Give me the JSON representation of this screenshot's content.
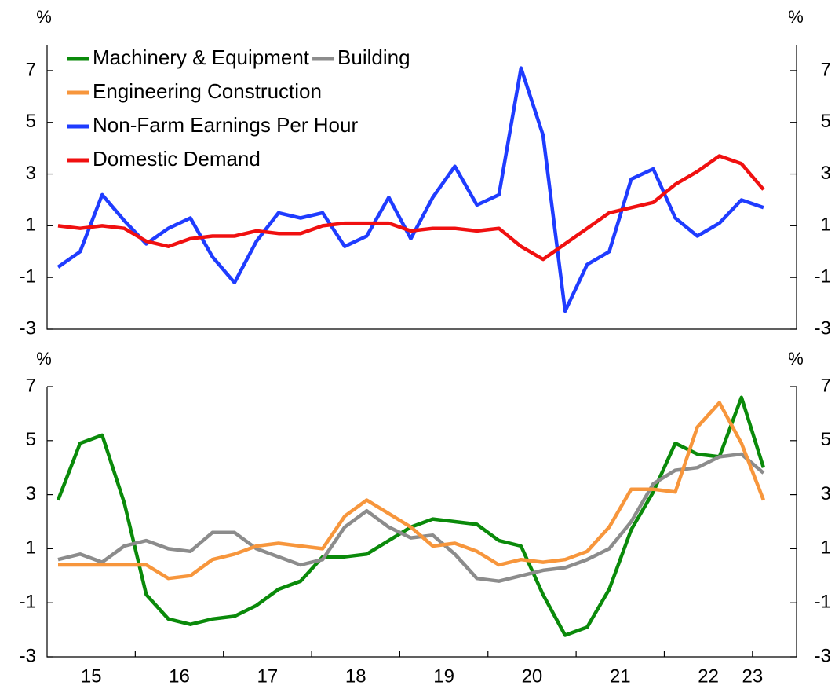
{
  "chart_data": [
    {
      "type": "line",
      "ylabel": "%",
      "y2label": "%",
      "x": [
        15.125,
        15.375,
        15.625,
        15.875,
        16.125,
        16.375,
        16.625,
        16.875,
        17.125,
        17.375,
        17.625,
        17.875,
        18.125,
        18.375,
        18.625,
        18.875,
        19.125,
        19.375,
        19.625,
        19.875,
        20.125,
        20.375,
        20.625,
        20.875,
        21.125,
        21.375,
        21.625,
        21.875,
        22.125,
        22.375,
        22.625,
        22.875,
        23.125
      ],
      "xlim": [
        15,
        23.5
      ],
      "series": [
        {
          "name": "Non-Farm Earnings Per Hour",
          "color": "#1f3cff",
          "values": [
            -0.6,
            0.0,
            2.2,
            1.2,
            0.3,
            0.9,
            1.3,
            -0.2,
            -1.2,
            0.4,
            1.5,
            1.3,
            1.5,
            0.2,
            0.6,
            2.1,
            0.5,
            2.1,
            3.3,
            1.8,
            2.2,
            7.1,
            4.5,
            -2.3,
            -0.5,
            0.0,
            2.8,
            3.2,
            1.3,
            0.6,
            1.1,
            2.0,
            1.7
          ]
        },
        {
          "name": "Domestic Demand",
          "color": "#f01010",
          "values": [
            1.0,
            0.9,
            1.0,
            0.9,
            0.4,
            0.2,
            0.5,
            0.6,
            0.6,
            0.8,
            0.7,
            0.7,
            1.0,
            1.1,
            1.1,
            1.1,
            0.8,
            0.9,
            0.9,
            0.8,
            0.9,
            0.2,
            -0.3,
            0.3,
            0.9,
            1.5,
            1.7,
            1.9,
            2.6,
            3.1,
            3.7,
            3.4,
            2.4
          ]
        }
      ],
      "ylim": [
        -3,
        8
      ],
      "yticks": [
        -3,
        -1,
        1,
        3,
        5,
        7
      ],
      "y2lim": [
        -3,
        8
      ],
      "y2ticks": [
        -3,
        -1,
        1,
        3,
        5,
        7
      ]
    },
    {
      "type": "line",
      "ylabel": "%",
      "y2label": "%",
      "x": [
        15.125,
        15.375,
        15.625,
        15.875,
        16.125,
        16.375,
        16.625,
        16.875,
        17.125,
        17.375,
        17.625,
        17.875,
        18.125,
        18.375,
        18.625,
        18.875,
        19.125,
        19.375,
        19.625,
        19.875,
        20.125,
        20.375,
        20.625,
        20.875,
        21.125,
        21.375,
        21.625,
        21.875,
        22.125,
        22.375,
        22.625,
        22.875,
        23.125
      ],
      "xlim": [
        15,
        23.5
      ],
      "xticks": [
        {
          "value": 15.5,
          "label": "15"
        },
        {
          "value": 16.5,
          "label": "16"
        },
        {
          "value": 17.5,
          "label": "17"
        },
        {
          "value": 18.5,
          "label": "18"
        },
        {
          "value": 19.5,
          "label": "19"
        },
        {
          "value": 20.5,
          "label": "20"
        },
        {
          "value": 21.5,
          "label": "21"
        },
        {
          "value": 22.5,
          "label": "22"
        },
        {
          "value": 23,
          "label": "23"
        }
      ],
      "xminorticks": [
        16,
        17,
        18,
        19,
        20,
        21,
        22,
        23
      ],
      "series": [
        {
          "name": "Machinery & Equipment",
          "color": "#0a8a0a",
          "values": [
            2.8,
            4.9,
            5.2,
            2.7,
            -0.7,
            -1.6,
            -1.8,
            -1.6,
            -1.5,
            -1.1,
            -0.5,
            -0.2,
            0.7,
            0.7,
            0.8,
            1.3,
            1.8,
            2.1,
            2.0,
            1.9,
            1.3,
            1.1,
            -0.7,
            -2.2,
            -1.9,
            -0.5,
            1.7,
            3.1,
            4.9,
            4.5,
            4.4,
            6.6,
            4.0
          ]
        },
        {
          "name": "Building",
          "color": "#8c8c8c",
          "values": [
            0.6,
            0.8,
            0.5,
            1.1,
            1.3,
            1.0,
            0.9,
            1.6,
            1.6,
            1.0,
            0.7,
            0.4,
            0.6,
            1.8,
            2.4,
            1.8,
            1.4,
            1.5,
            0.8,
            -0.1,
            -0.2,
            0.0,
            0.2,
            0.3,
            0.6,
            1.0,
            2.0,
            3.4,
            3.9,
            4.0,
            4.4,
            4.5,
            3.8
          ]
        },
        {
          "name": "Engineering Construction",
          "color": "#f7963c",
          "values": [
            0.4,
            0.4,
            0.4,
            0.4,
            0.4,
            -0.1,
            0.0,
            0.6,
            0.8,
            1.1,
            1.2,
            1.1,
            1.0,
            2.2,
            2.8,
            2.3,
            1.8,
            1.1,
            1.2,
            0.9,
            0.4,
            0.6,
            0.5,
            0.6,
            0.9,
            1.8,
            3.2,
            3.2,
            3.1,
            5.5,
            6.4,
            4.9,
            2.8
          ]
        }
      ],
      "ylim": [
        -3,
        7
      ],
      "yticks": [
        -3,
        -1,
        1,
        3,
        5,
        7
      ],
      "y2lim": [
        -3,
        7
      ],
      "y2ticks": [
        -3,
        -1,
        1,
        3,
        5,
        7
      ]
    }
  ]
}
